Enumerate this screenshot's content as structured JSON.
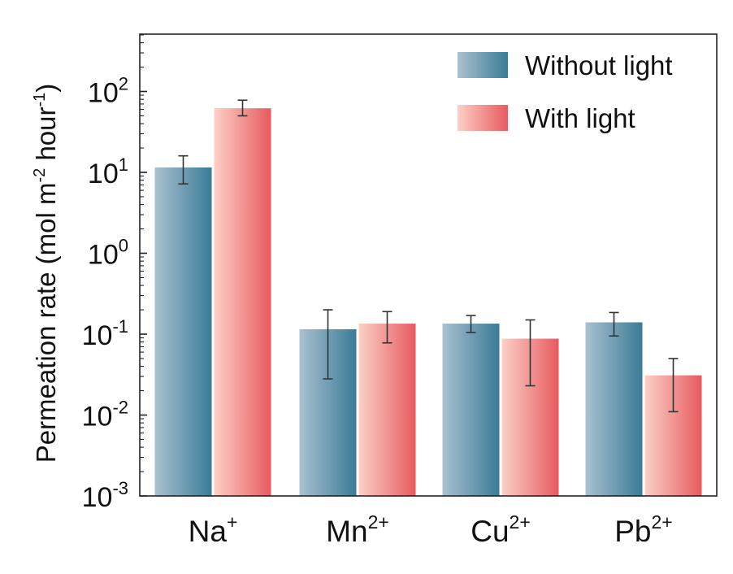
{
  "chart_data": {
    "type": "bar",
    "ylabel": "Permeation rate (mol m-2 hour-1)",
    "ylabel_parts": {
      "prefix": "Permeation rate (mol m",
      "exp1": "-2",
      "middle": " hour",
      "exp2": "-1",
      "suffix": ")"
    },
    "yscale": "log",
    "ylim": [
      0.001,
      500
    ],
    "yticks": [
      {
        "base": "10",
        "exp": "-3",
        "value": 0.001
      },
      {
        "base": "10",
        "exp": "-2",
        "value": 0.01
      },
      {
        "base": "10",
        "exp": "-1",
        "value": 0.1
      },
      {
        "base": "10",
        "exp": "0",
        "value": 1
      },
      {
        "base": "10",
        "exp": "1",
        "value": 10
      },
      {
        "base": "10",
        "exp": "2",
        "value": 100
      }
    ],
    "categories": [
      {
        "base": "Na",
        "charge": "+"
      },
      {
        "base": "Mn",
        "charge": "2+"
      },
      {
        "base": "Cu",
        "charge": "2+"
      },
      {
        "base": "Pb",
        "charge": "2+"
      }
    ],
    "series": [
      {
        "name": "Without light",
        "color_light": "#a9c1cf",
        "color_dark": "#3a7b98",
        "values": [
          11.5,
          0.115,
          0.135,
          0.14
        ],
        "err_low": [
          7.2,
          0.028,
          0.105,
          0.095
        ],
        "err_high": [
          16.0,
          0.2,
          0.17,
          0.185
        ]
      },
      {
        "name": "With light",
        "color_light": "#fcd0c6",
        "color_dark": "#e85a5f",
        "values": [
          62,
          0.135,
          0.088,
          0.031
        ],
        "err_low": [
          50,
          0.078,
          0.023,
          0.011
        ],
        "err_high": [
          78,
          0.19,
          0.15,
          0.05
        ]
      }
    ],
    "legend_position": "top-right",
    "grid": false
  }
}
